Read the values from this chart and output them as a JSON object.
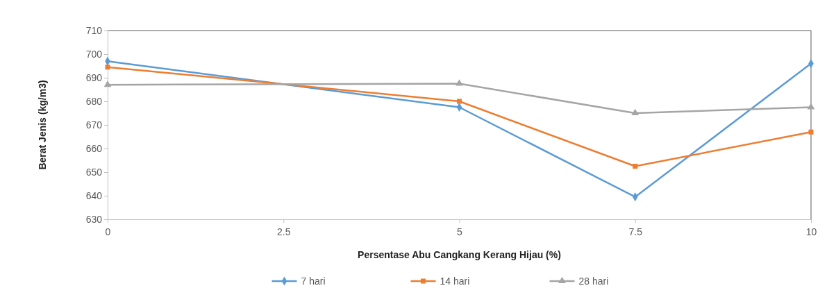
{
  "chart_data": {
    "type": "line",
    "xlabel": "Persentase Abu Cangkang Kerang Hijau (%)",
    "ylabel": "Berat Jenis (kg/m3)",
    "x": [
      0,
      5,
      7.5,
      10
    ],
    "xlim": [
      0,
      10
    ],
    "xticks": [
      0,
      2.5,
      5,
      7.5,
      10
    ],
    "ylim": [
      630,
      710
    ],
    "yticks": [
      630,
      640,
      650,
      660,
      670,
      680,
      690,
      700,
      710
    ],
    "grid": false,
    "legend": "bottom",
    "line_style": "solid",
    "series": [
      {
        "name": "7 hari",
        "color": "#5b9bd5",
        "marker": "diamond",
        "values": [
          697,
          677.5,
          639.5,
          696
        ]
      },
      {
        "name": "14 hari",
        "color": "#ed7d31",
        "marker": "square",
        "values": [
          694.5,
          680,
          652.5,
          667
        ]
      },
      {
        "name": "28 hari",
        "color": "#a5a5a5",
        "marker": "triangle",
        "values": [
          687,
          687.5,
          675,
          677.5
        ]
      }
    ]
  }
}
